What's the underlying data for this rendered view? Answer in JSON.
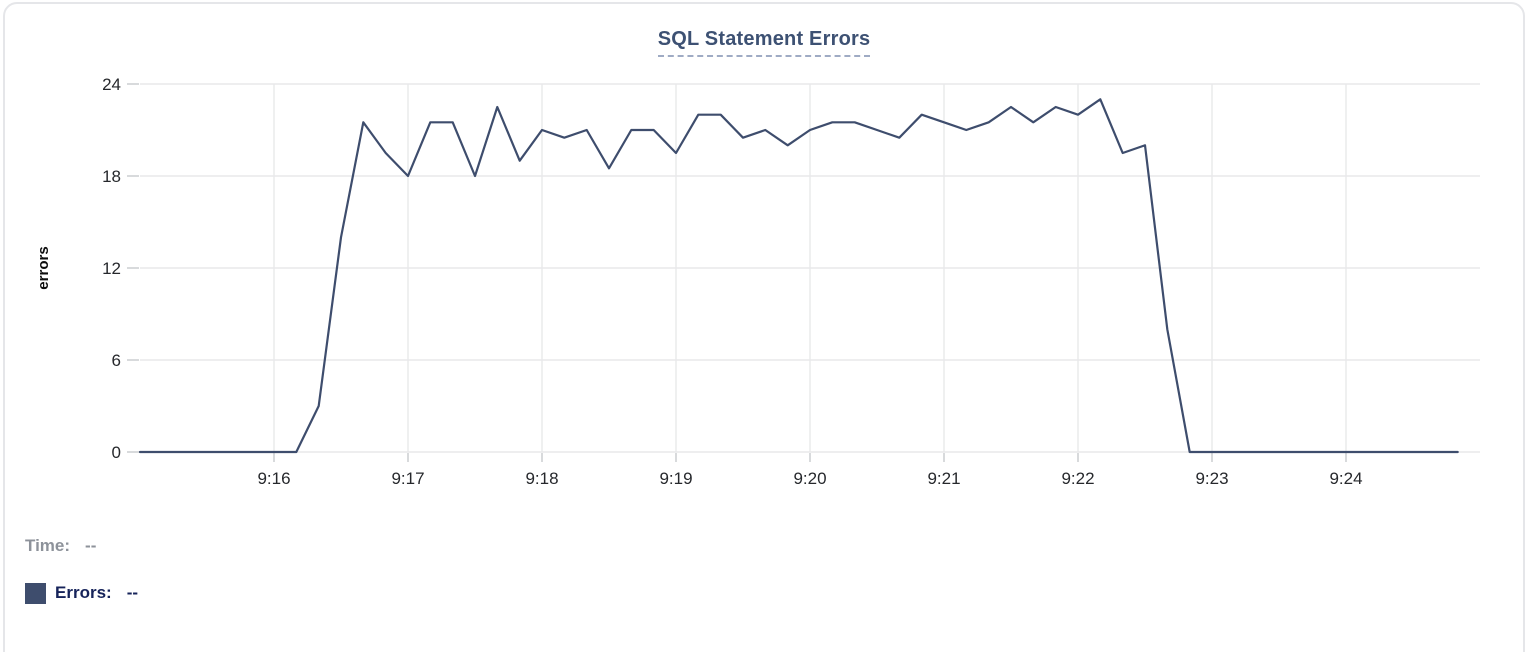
{
  "chart_data": {
    "type": "line",
    "title": "SQL Statement Errors",
    "ylabel": "errors",
    "ylim": [
      0,
      24
    ],
    "y_ticks": [
      0,
      6,
      12,
      18,
      24
    ],
    "x_ticks": [
      "9:16",
      "9:17",
      "9:18",
      "9:19",
      "9:20",
      "9:21",
      "9:22",
      "9:23",
      "9:24"
    ],
    "x_domain": [
      "9:15:00",
      "9:25:00"
    ],
    "grid": true,
    "legend_position": "bottom-left",
    "series": [
      {
        "name": "Errors",
        "color": "#3e4d6d",
        "x": [
          "9:15:00",
          "9:15:10",
          "9:15:20",
          "9:15:30",
          "9:15:40",
          "9:15:50",
          "9:16:00",
          "9:16:10",
          "9:16:20",
          "9:16:30",
          "9:16:40",
          "9:16:50",
          "9:17:00",
          "9:17:10",
          "9:17:20",
          "9:17:30",
          "9:17:40",
          "9:17:50",
          "9:18:00",
          "9:18:10",
          "9:18:20",
          "9:18:30",
          "9:18:40",
          "9:18:50",
          "9:19:00",
          "9:19:10",
          "9:19:20",
          "9:19:30",
          "9:19:40",
          "9:19:50",
          "9:20:00",
          "9:20:10",
          "9:20:20",
          "9:20:30",
          "9:20:40",
          "9:20:50",
          "9:21:00",
          "9:21:10",
          "9:21:20",
          "9:21:30",
          "9:21:40",
          "9:21:50",
          "9:22:00",
          "9:22:10",
          "9:22:20",
          "9:22:30",
          "9:22:40",
          "9:22:50",
          "9:23:00",
          "9:23:10",
          "9:23:20",
          "9:23:30",
          "9:23:40",
          "9:23:50",
          "9:24:00",
          "9:24:10",
          "9:24:20",
          "9:24:30",
          "9:24:40",
          "9:24:50"
        ],
        "values": [
          0,
          0,
          0,
          0,
          0,
          0,
          0,
          0,
          3,
          14,
          21.5,
          19.5,
          18,
          21.5,
          21.5,
          18,
          22.5,
          19,
          21,
          20.5,
          21,
          18.5,
          21,
          21,
          19.5,
          22,
          22,
          20.5,
          21,
          20,
          21,
          21.5,
          21.5,
          21,
          20.5,
          22,
          21.5,
          21,
          21.5,
          22.5,
          21.5,
          22.5,
          22,
          23,
          19.5,
          20,
          8,
          0,
          0,
          0,
          0,
          0,
          0,
          0,
          0,
          0,
          0,
          0,
          0,
          0
        ]
      }
    ]
  },
  "tooltip": {
    "time_label": "Time:",
    "time_value": "--",
    "errors_label": "Errors:",
    "errors_value": "--"
  },
  "colors": {
    "line": "#3e4d6d",
    "title": "#3d5173",
    "title_underline": "#9fabc4",
    "grid": "#e8e9ea",
    "tick_stub": "#d8dadc",
    "axis_text": "#26282c",
    "muted_text": "#8d929a",
    "legend_text": "#16235a",
    "card_border": "#e5e6e9"
  }
}
